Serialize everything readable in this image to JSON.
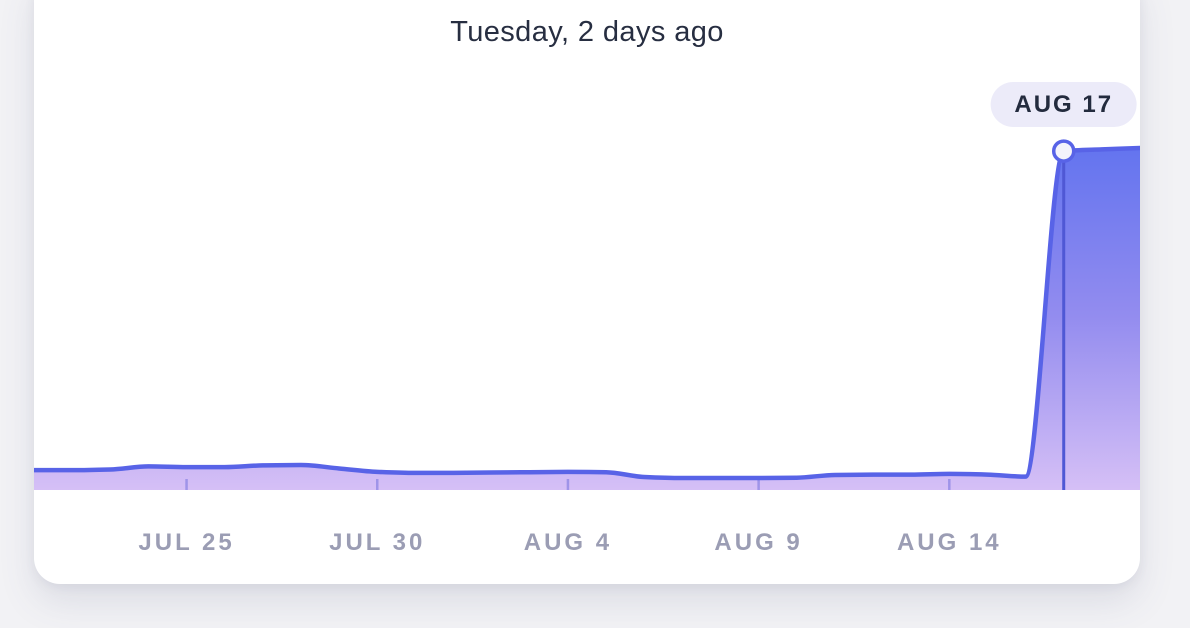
{
  "page": {
    "background_color": "#F2F2F5",
    "card_background_color": "#FFFFFF"
  },
  "header": {
    "title": "Tuesday, 2 days ago",
    "title_color": "#272E41"
  },
  "selected_point_badge": {
    "label": "AUG 17",
    "background_color": "#ECEBF9",
    "text_color": "#232B3E"
  },
  "x_axis": {
    "label_color": "#9B9DB4"
  },
  "chart_data": {
    "type": "area",
    "title": "Tuesday, 2 days ago",
    "x": [
      "JUL 21",
      "JUL 22",
      "JUL 23",
      "JUL 24",
      "JUL 25",
      "JUL 26",
      "JUL 27",
      "JUL 28",
      "JUL 29",
      "JUL 30",
      "JUL 31",
      "AUG 1",
      "AUG 2",
      "AUG 3",
      "AUG 4",
      "AUG 5",
      "AUG 6",
      "AUG 7",
      "AUG 8",
      "AUG 9",
      "AUG 10",
      "AUG 11",
      "AUG 12",
      "AUG 13",
      "AUG 14",
      "AUG 15",
      "AUG 16",
      "AUG 17",
      "AUG 18",
      "AUG 19"
    ],
    "values": [
      5.8,
      5.8,
      6.0,
      6.9,
      6.7,
      6.7,
      7.2,
      7.3,
      6.3,
      5.3,
      5.0,
      5.0,
      5.1,
      5.2,
      5.3,
      5.2,
      3.8,
      3.5,
      3.5,
      3.5,
      3.6,
      4.4,
      4.5,
      4.5,
      4.7,
      4.5,
      3.9,
      99.1,
      99.6,
      100
    ],
    "value_scale_note": "relative scale 0-100; no y-axis shown in chart",
    "ylim": [
      0,
      100
    ],
    "xlabel": "",
    "ylabel": "",
    "y_axis_visible": false,
    "grid": false,
    "legend": null,
    "x_tick_labels": [
      "JUL 25",
      "JUL 30",
      "AUG 4",
      "AUG 9",
      "AUG 14"
    ],
    "x_tick_indices": [
      4,
      9,
      14,
      19,
      24
    ],
    "selected_index": 27,
    "selected_label": "AUG 17",
    "smoothing": "monotone",
    "colors": {
      "line": "#5863E7",
      "area_gradient_top": "#6173EF",
      "area_gradient_mid": "#938CEF",
      "area_gradient_bottom": "#D6C0F6",
      "marker_fill": "#F4F3FB",
      "marker_stroke": "#5863E7",
      "cursor_line": "#4F58D5",
      "tick": "rgba(96,98,218,0.45)"
    }
  }
}
